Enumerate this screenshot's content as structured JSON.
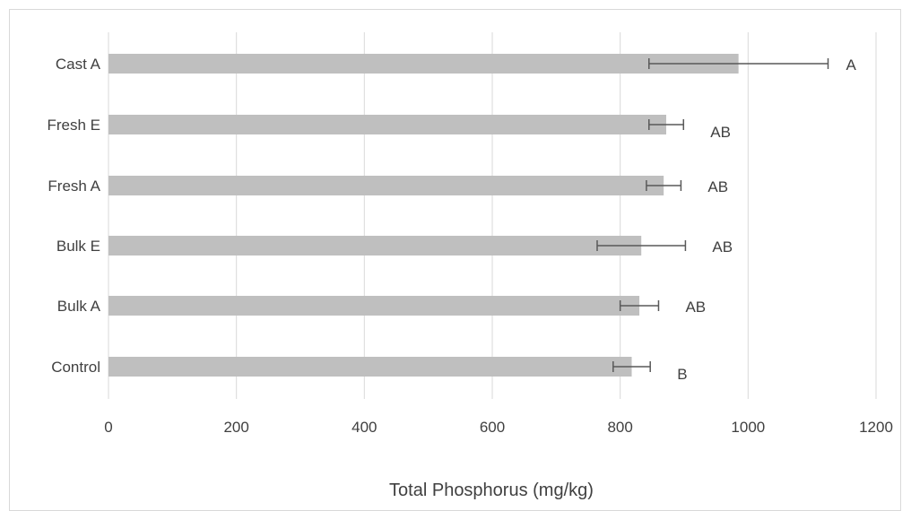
{
  "chart_data": {
    "type": "bar",
    "orientation": "horizontal",
    "title": "",
    "xlabel": "Total Phosphorus (mg/kg)",
    "ylabel": "",
    "xlim": [
      0,
      1200
    ],
    "x_ticks": [
      "0",
      "200",
      "400",
      "600",
      "800",
      "1000",
      "1200"
    ],
    "grid": "vertical",
    "bar_color": "#bfbfbf",
    "error_bar_color": "#595959",
    "categories": [
      "Cast A",
      "Fresh E",
      "Fresh A",
      "Bulk E",
      "Bulk A",
      "Control"
    ],
    "values": [
      985,
      872,
      868,
      833,
      830,
      818
    ],
    "errors": [
      140,
      27,
      27,
      69,
      30,
      29
    ],
    "significance_letters": [
      "A",
      "AB",
      "AB",
      "AB",
      "AB",
      "B"
    ]
  }
}
